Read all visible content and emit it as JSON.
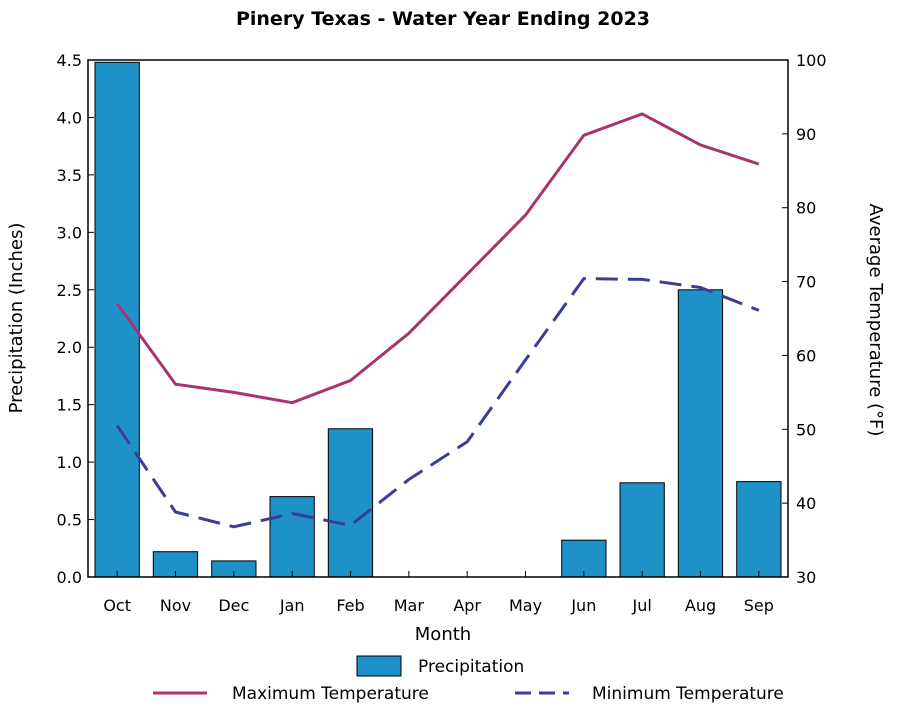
{
  "chart_data": {
    "type": "bar",
    "title": "Pinery Texas - Water Year Ending 2023",
    "xlabel": "Month",
    "ylabel": "Precipitation (Inches)",
    "y2label": "Average Temperature (°F)",
    "categories": [
      "Oct",
      "Nov",
      "Dec",
      "Jan",
      "Feb",
      "Mar",
      "Apr",
      "May",
      "Jun",
      "Jul",
      "Aug",
      "Sep"
    ],
    "ylim": [
      0,
      4.5
    ],
    "y2lim": [
      30,
      100
    ],
    "yticks": [
      "0.0",
      "0.5",
      "1.0",
      "1.5",
      "2.0",
      "2.5",
      "3.0",
      "3.5",
      "4.0",
      "4.5"
    ],
    "y2ticks": [
      "30",
      "40",
      "50",
      "60",
      "70",
      "80",
      "90",
      "100"
    ],
    "legend_position": "bottom",
    "series": [
      {
        "name": "Precipitation",
        "kind": "bar",
        "axis": "left",
        "color": "#1f91c9",
        "values": [
          4.48,
          0.22,
          0.14,
          0.7,
          1.29,
          0.0,
          0.0,
          0.0,
          0.32,
          0.82,
          2.5,
          0.83
        ]
      },
      {
        "name": "Maximum Temperature",
        "kind": "line",
        "axis": "right",
        "color": "#a8336e",
        "style": "solid",
        "values": [
          67.0,
          56.1,
          55.0,
          53.6,
          56.6,
          63.0,
          71.0,
          79.0,
          89.8,
          92.7,
          88.5,
          85.9
        ]
      },
      {
        "name": "Minimum Temperature",
        "kind": "line",
        "axis": "right",
        "color": "#3a3d97",
        "style": "dashed",
        "values": [
          50.5,
          38.8,
          36.8,
          38.6,
          37.0,
          43.2,
          48.3,
          59.4,
          70.4,
          70.3,
          69.2,
          66.1
        ]
      }
    ]
  }
}
